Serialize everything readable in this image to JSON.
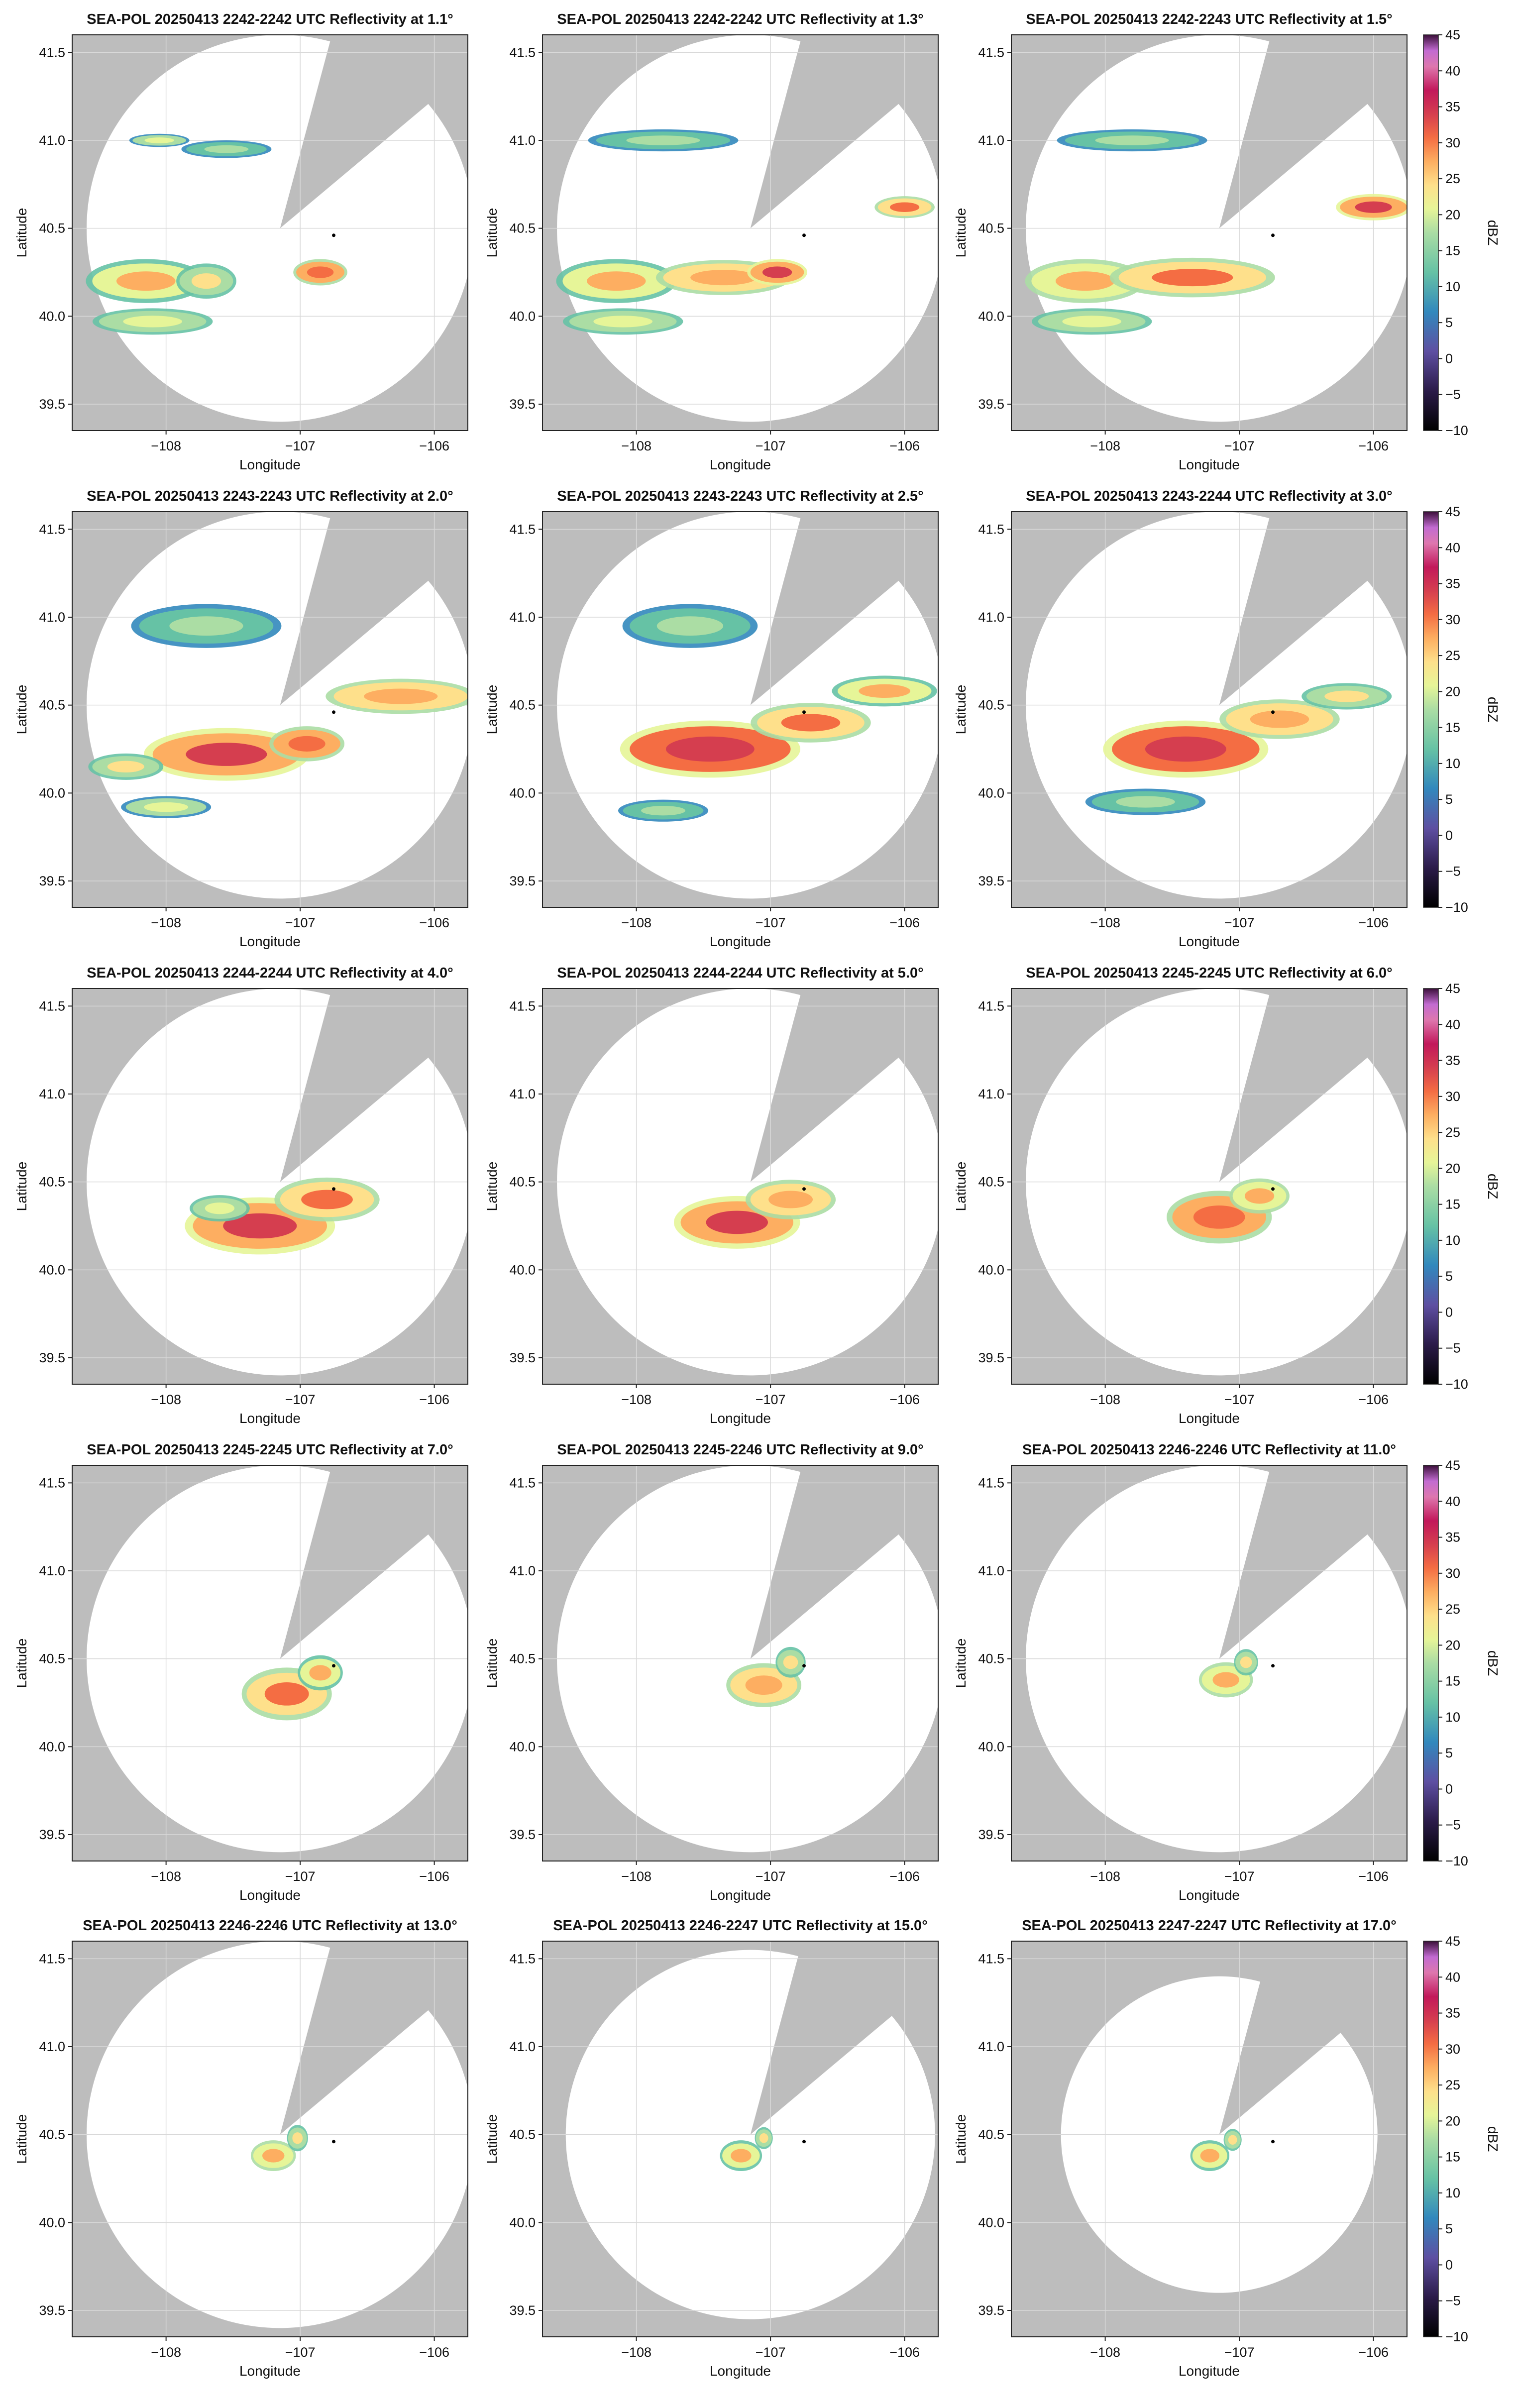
{
  "figure": {
    "colormap": "Spectral_r",
    "background_outside_range": "#bdbdbd",
    "colorbar": {
      "label": "dBZ",
      "ticks": [
        -10,
        -5,
        0,
        5,
        10,
        15,
        20,
        25,
        30,
        35,
        40,
        45
      ],
      "range": [
        -10,
        45
      ]
    },
    "radar_marker_color": "#000000"
  },
  "chart_data": [
    {
      "type": "heatmap",
      "title": "SEA-POL 20250413 2242-2242 UTC Reflectivity at 1.1°",
      "xlabel": "Longitude",
      "ylabel": "Latitude",
      "xticks": [
        "−108",
        "−107",
        "−106"
      ],
      "yticks": [
        "39.5",
        "40.0",
        "40.5",
        "41.0",
        "41.5"
      ],
      "xlim": [
        -108.7,
        -105.75
      ],
      "ylim": [
        39.35,
        41.6
      ],
      "sweep": {
        "center": [
          -107.15,
          40.5
        ],
        "radius_deg_lat": 1.1,
        "blocked_sector_az": [
          15,
          50
        ]
      },
      "radar_site": [
        -106.75,
        40.46
      ],
      "cells": [
        {
          "lon": -108.15,
          "lat": 40.2,
          "rlon": 0.4,
          "rlat": 0.1,
          "dbz": 22
        },
        {
          "lon": -107.7,
          "lat": 40.2,
          "rlon": 0.2,
          "rlat": 0.08,
          "dbz": 20
        },
        {
          "lon": -106.85,
          "lat": 40.25,
          "rlon": 0.18,
          "rlat": 0.06,
          "dbz": 27
        },
        {
          "lon": -108.1,
          "lat": 39.97,
          "rlon": 0.4,
          "rlat": 0.06,
          "dbz": 18
        },
        {
          "lon": -108.05,
          "lat": 41.0,
          "rlon": 0.2,
          "rlat": 0.03,
          "dbz": 16
        },
        {
          "lon": -107.55,
          "lat": 40.95,
          "rlon": 0.3,
          "rlat": 0.04,
          "dbz": 15
        }
      ]
    },
    {
      "type": "heatmap",
      "title": "SEA-POL 20250413 2242-2242 UTC Reflectivity at 1.3°",
      "xlabel": "Longitude",
      "ylabel": "Latitude",
      "xticks": [
        "−108",
        "−107",
        "−106"
      ],
      "yticks": [
        "39.5",
        "40.0",
        "40.5",
        "41.0",
        "41.5"
      ],
      "xlim": [
        -108.7,
        -105.75
      ],
      "ylim": [
        39.35,
        41.6
      ],
      "sweep": {
        "center": [
          -107.15,
          40.5
        ],
        "radius_deg_lat": 1.1,
        "blocked_sector_az": [
          15,
          50
        ]
      },
      "radar_site": [
        -106.75,
        40.46
      ],
      "cells": [
        {
          "lon": -108.15,
          "lat": 40.2,
          "rlon": 0.4,
          "rlat": 0.1,
          "dbz": 22
        },
        {
          "lon": -107.35,
          "lat": 40.22,
          "rlon": 0.45,
          "rlat": 0.08,
          "dbz": 24
        },
        {
          "lon": -106.95,
          "lat": 40.25,
          "rlon": 0.2,
          "rlat": 0.06,
          "dbz": 28
        },
        {
          "lon": -106.0,
          "lat": 40.62,
          "rlon": 0.2,
          "rlat": 0.05,
          "dbz": 26
        },
        {
          "lon": -108.1,
          "lat": 39.97,
          "rlon": 0.4,
          "rlat": 0.06,
          "dbz": 18
        },
        {
          "lon": -107.8,
          "lat": 41.0,
          "rlon": 0.5,
          "rlat": 0.05,
          "dbz": 15
        }
      ]
    },
    {
      "type": "heatmap",
      "title": "SEA-POL 20250413 2242-2243 UTC Reflectivity at 1.5°",
      "xlabel": "Longitude",
      "ylabel": "Latitude",
      "xticks": [
        "−108",
        "−107",
        "−106"
      ],
      "yticks": [
        "39.5",
        "40.0",
        "40.5",
        "41.0",
        "41.5"
      ],
      "xlim": [
        -108.7,
        -105.75
      ],
      "ylim": [
        39.35,
        41.6
      ],
      "sweep": {
        "center": [
          -107.15,
          40.5
        ],
        "radius_deg_lat": 1.1,
        "blocked_sector_az": [
          15,
          50
        ]
      },
      "radar_site": [
        -106.75,
        40.46
      ],
      "cells": [
        {
          "lon": -108.15,
          "lat": 40.2,
          "rlon": 0.4,
          "rlat": 0.1,
          "dbz": 23
        },
        {
          "lon": -107.35,
          "lat": 40.22,
          "rlon": 0.55,
          "rlat": 0.09,
          "dbz": 26
        },
        {
          "lon": -106.0,
          "lat": 40.62,
          "rlon": 0.25,
          "rlat": 0.06,
          "dbz": 28
        },
        {
          "lon": -108.1,
          "lat": 39.97,
          "rlon": 0.4,
          "rlat": 0.06,
          "dbz": 18
        },
        {
          "lon": -107.8,
          "lat": 41.0,
          "rlon": 0.5,
          "rlat": 0.05,
          "dbz": 15
        }
      ]
    },
    {
      "type": "heatmap",
      "title": "SEA-POL 20250413 2243-2243 UTC Reflectivity at 2.0°",
      "xlabel": "Longitude",
      "ylabel": "Latitude",
      "xticks": [
        "−108",
        "−107",
        "−106"
      ],
      "yticks": [
        "39.5",
        "40.0",
        "40.5",
        "41.0",
        "41.5"
      ],
      "xlim": [
        -108.7,
        -105.75
      ],
      "ylim": [
        39.35,
        41.6
      ],
      "sweep": {
        "center": [
          -107.15,
          40.5
        ],
        "radius_deg_lat": 1.1,
        "blocked_sector_az": [
          15,
          50
        ]
      },
      "radar_site": [
        -106.75,
        40.46
      ],
      "cells": [
        {
          "lon": -107.55,
          "lat": 40.22,
          "rlon": 0.55,
          "rlat": 0.12,
          "dbz": 29
        },
        {
          "lon": -106.95,
          "lat": 40.28,
          "rlon": 0.25,
          "rlat": 0.08,
          "dbz": 27
        },
        {
          "lon": -106.25,
          "lat": 40.55,
          "rlon": 0.5,
          "rlat": 0.08,
          "dbz": 24
        },
        {
          "lon": -108.3,
          "lat": 40.15,
          "rlon": 0.25,
          "rlat": 0.06,
          "dbz": 20
        },
        {
          "lon": -107.7,
          "lat": 40.95,
          "rlon": 0.5,
          "rlat": 0.1,
          "dbz": 15
        },
        {
          "lon": -108.0,
          "lat": 39.92,
          "rlon": 0.3,
          "rlat": 0.05,
          "dbz": 16
        }
      ]
    },
    {
      "type": "heatmap",
      "title": "SEA-POL 20250413 2243-2243 UTC Reflectivity at 2.5°",
      "xlabel": "Longitude",
      "ylabel": "Latitude",
      "xticks": [
        "−108",
        "−107",
        "−106"
      ],
      "yticks": [
        "39.5",
        "40.0",
        "40.5",
        "41.0",
        "41.5"
      ],
      "xlim": [
        -108.7,
        -105.75
      ],
      "ylim": [
        39.35,
        41.6
      ],
      "sweep": {
        "center": [
          -107.15,
          40.5
        ],
        "radius_deg_lat": 1.1,
        "blocked_sector_az": [
          15,
          50
        ]
      },
      "radar_site": [
        -106.75,
        40.46
      ],
      "cells": [
        {
          "lon": -107.45,
          "lat": 40.25,
          "rlon": 0.6,
          "rlat": 0.13,
          "dbz": 30
        },
        {
          "lon": -106.7,
          "lat": 40.4,
          "rlon": 0.4,
          "rlat": 0.09,
          "dbz": 25
        },
        {
          "lon": -106.15,
          "lat": 40.58,
          "rlon": 0.35,
          "rlat": 0.07,
          "dbz": 22
        },
        {
          "lon": -107.6,
          "lat": 40.95,
          "rlon": 0.45,
          "rlat": 0.1,
          "dbz": 14
        },
        {
          "lon": -107.8,
          "lat": 39.9,
          "rlon": 0.3,
          "rlat": 0.05,
          "dbz": 15
        }
      ]
    },
    {
      "type": "heatmap",
      "title": "SEA-POL 20250413 2243-2244 UTC Reflectivity at 3.0°",
      "xlabel": "Longitude",
      "ylabel": "Latitude",
      "xticks": [
        "−108",
        "−107",
        "−106"
      ],
      "yticks": [
        "39.5",
        "40.0",
        "40.5",
        "41.0",
        "41.5"
      ],
      "xlim": [
        -108.7,
        -105.75
      ],
      "ylim": [
        39.35,
        41.6
      ],
      "sweep": {
        "center": [
          -107.15,
          40.5
        ],
        "radius_deg_lat": 1.1,
        "blocked_sector_az": [
          15,
          50
        ]
      },
      "radar_site": [
        -106.75,
        40.46
      ],
      "cells": [
        {
          "lon": -107.4,
          "lat": 40.25,
          "rlon": 0.55,
          "rlat": 0.13,
          "dbz": 30
        },
        {
          "lon": -106.7,
          "lat": 40.42,
          "rlon": 0.4,
          "rlat": 0.09,
          "dbz": 24
        },
        {
          "lon": -106.2,
          "lat": 40.55,
          "rlon": 0.3,
          "rlat": 0.06,
          "dbz": 20
        },
        {
          "lon": -107.7,
          "lat": 39.95,
          "rlon": 0.4,
          "rlat": 0.06,
          "dbz": 15
        }
      ]
    },
    {
      "type": "heatmap",
      "title": "SEA-POL 20250413 2244-2244 UTC Reflectivity at 4.0°",
      "xlabel": "Longitude",
      "ylabel": "Latitude",
      "xticks": [
        "−108",
        "−107",
        "−106"
      ],
      "yticks": [
        "39.5",
        "40.0",
        "40.5",
        "41.0",
        "41.5"
      ],
      "xlim": [
        -108.7,
        -105.75
      ],
      "ylim": [
        39.35,
        41.6
      ],
      "sweep": {
        "center": [
          -107.15,
          40.5
        ],
        "radius_deg_lat": 1.1,
        "blocked_sector_az": [
          15,
          50
        ]
      },
      "radar_site": [
        -106.75,
        40.46
      ],
      "cells": [
        {
          "lon": -107.3,
          "lat": 40.25,
          "rlon": 0.5,
          "rlat": 0.13,
          "dbz": 28
        },
        {
          "lon": -106.8,
          "lat": 40.4,
          "rlon": 0.35,
          "rlat": 0.1,
          "dbz": 25
        },
        {
          "lon": -107.6,
          "lat": 40.35,
          "rlon": 0.2,
          "rlat": 0.06,
          "dbz": 18
        }
      ]
    },
    {
      "type": "heatmap",
      "title": "SEA-POL 20250413 2244-2244 UTC Reflectivity at 5.0°",
      "xlabel": "Longitude",
      "ylabel": "Latitude",
      "xticks": [
        "−108",
        "−107",
        "−106"
      ],
      "yticks": [
        "39.5",
        "40.0",
        "40.5",
        "41.0",
        "41.5"
      ],
      "xlim": [
        -108.7,
        -105.75
      ],
      "ylim": [
        39.35,
        41.6
      ],
      "sweep": {
        "center": [
          -107.15,
          40.5
        ],
        "radius_deg_lat": 1.1,
        "blocked_sector_az": [
          15,
          50
        ]
      },
      "radar_site": [
        -106.75,
        40.46
      ],
      "cells": [
        {
          "lon": -107.25,
          "lat": 40.27,
          "rlon": 0.42,
          "rlat": 0.12,
          "dbz": 28
        },
        {
          "lon": -106.85,
          "lat": 40.4,
          "rlon": 0.3,
          "rlat": 0.09,
          "dbz": 24
        }
      ]
    },
    {
      "type": "heatmap",
      "title": "SEA-POL 20250413 2245-2245 UTC Reflectivity at 6.0°",
      "xlabel": "Longitude",
      "ylabel": "Latitude",
      "xticks": [
        "−108",
        "−107",
        "−106"
      ],
      "yticks": [
        "39.5",
        "40.0",
        "40.5",
        "41.0",
        "41.5"
      ],
      "xlim": [
        -108.7,
        -105.75
      ],
      "ylim": [
        39.35,
        41.6
      ],
      "sweep": {
        "center": [
          -107.15,
          40.5
        ],
        "radius_deg_lat": 1.1,
        "blocked_sector_az": [
          15,
          50
        ]
      },
      "radar_site": [
        -106.75,
        40.46
      ],
      "cells": [
        {
          "lon": -107.15,
          "lat": 40.3,
          "rlon": 0.35,
          "rlat": 0.12,
          "dbz": 27
        },
        {
          "lon": -106.85,
          "lat": 40.42,
          "rlon": 0.2,
          "rlat": 0.08,
          "dbz": 23
        }
      ]
    },
    {
      "type": "heatmap",
      "title": "SEA-POL 20250413 2245-2245 UTC Reflectivity at 7.0°",
      "xlabel": "Longitude",
      "ylabel": "Latitude",
      "xticks": [
        "−108",
        "−107",
        "−106"
      ],
      "yticks": [
        "39.5",
        "40.0",
        "40.5",
        "41.0",
        "41.5"
      ],
      "xlim": [
        -108.7,
        -105.75
      ],
      "ylim": [
        39.35,
        41.6
      ],
      "sweep": {
        "center": [
          -107.15,
          40.5
        ],
        "radius_deg_lat": 1.1,
        "blocked_sector_az": [
          15,
          50
        ]
      },
      "radar_site": [
        -106.75,
        40.46
      ],
      "cells": [
        {
          "lon": -107.1,
          "lat": 40.3,
          "rlon": 0.3,
          "rlat": 0.12,
          "dbz": 26
        },
        {
          "lon": -106.85,
          "lat": 40.42,
          "rlon": 0.15,
          "rlat": 0.08,
          "dbz": 22
        }
      ]
    },
    {
      "type": "heatmap",
      "title": "SEA-POL 20250413 2245-2246 UTC Reflectivity at 9.0°",
      "xlabel": "Longitude",
      "ylabel": "Latitude",
      "xticks": [
        "−108",
        "−107",
        "−106"
      ],
      "yticks": [
        "39.5",
        "40.0",
        "40.5",
        "41.0",
        "41.5"
      ],
      "xlim": [
        -108.7,
        -105.75
      ],
      "ylim": [
        39.35,
        41.6
      ],
      "sweep": {
        "center": [
          -107.15,
          40.5
        ],
        "radius_deg_lat": 1.1,
        "blocked_sector_az": [
          15,
          50
        ]
      },
      "radar_site": [
        -106.75,
        40.46
      ],
      "cells": [
        {
          "lon": -107.05,
          "lat": 40.35,
          "rlon": 0.25,
          "rlat": 0.1,
          "dbz": 24
        },
        {
          "lon": -106.85,
          "lat": 40.48,
          "rlon": 0.1,
          "rlat": 0.07,
          "dbz": 20
        }
      ]
    },
    {
      "type": "heatmap",
      "title": "SEA-POL 20250413 2246-2246 UTC Reflectivity at 11.0°",
      "xlabel": "Longitude",
      "ylabel": "Latitude",
      "xticks": [
        "−108",
        "−107",
        "−106"
      ],
      "yticks": [
        "39.5",
        "40.0",
        "40.5",
        "41.0",
        "41.5"
      ],
      "xlim": [
        -108.7,
        -105.75
      ],
      "ylim": [
        39.35,
        41.6
      ],
      "sweep": {
        "center": [
          -107.15,
          40.5
        ],
        "radius_deg_lat": 1.1,
        "blocked_sector_az": [
          15,
          50
        ]
      },
      "radar_site": [
        -106.75,
        40.46
      ],
      "cells": [
        {
          "lon": -107.1,
          "lat": 40.38,
          "rlon": 0.18,
          "rlat": 0.08,
          "dbz": 23
        },
        {
          "lon": -106.95,
          "lat": 40.48,
          "rlon": 0.08,
          "rlat": 0.06,
          "dbz": 20
        }
      ]
    },
    {
      "type": "heatmap",
      "title": "SEA-POL 20250413 2246-2246 UTC Reflectivity at 13.0°",
      "xlabel": "Longitude",
      "ylabel": "Latitude",
      "xticks": [
        "−108",
        "−107",
        "−106"
      ],
      "yticks": [
        "39.5",
        "40.0",
        "40.5",
        "41.0",
        "41.5"
      ],
      "xlim": [
        -108.7,
        -105.75
      ],
      "ylim": [
        39.35,
        41.6
      ],
      "sweep": {
        "center": [
          -107.15,
          40.5
        ],
        "radius_deg_lat": 1.1,
        "blocked_sector_az": [
          15,
          50
        ]
      },
      "radar_site": [
        -106.75,
        40.46
      ],
      "cells": [
        {
          "lon": -107.2,
          "lat": 40.38,
          "rlon": 0.15,
          "rlat": 0.07,
          "dbz": 23
        },
        {
          "lon": -107.02,
          "lat": 40.48,
          "rlon": 0.07,
          "rlat": 0.06,
          "dbz": 20
        }
      ]
    },
    {
      "type": "heatmap",
      "title": "SEA-POL 20250413 2246-2247 UTC Reflectivity at 15.0°",
      "xlabel": "Longitude",
      "ylabel": "Latitude",
      "xticks": [
        "−108",
        "−107",
        "−106"
      ],
      "yticks": [
        "39.5",
        "40.0",
        "40.5",
        "41.0",
        "41.5"
      ],
      "xlim": [
        -108.7,
        -105.75
      ],
      "ylim": [
        39.35,
        41.6
      ],
      "sweep": {
        "center": [
          -107.15,
          40.5
        ],
        "radius_deg_lat": 1.05,
        "blocked_sector_az": [
          15,
          50
        ]
      },
      "radar_site": [
        -106.75,
        40.46
      ],
      "cells": [
        {
          "lon": -107.22,
          "lat": 40.38,
          "rlon": 0.14,
          "rlat": 0.07,
          "dbz": 22
        },
        {
          "lon": -107.05,
          "lat": 40.48,
          "rlon": 0.06,
          "rlat": 0.05,
          "dbz": 19
        }
      ]
    },
    {
      "type": "heatmap",
      "title": "SEA-POL 20250413 2247-2247 UTC Reflectivity at 17.0°",
      "xlabel": "Longitude",
      "ylabel": "Latitude",
      "xticks": [
        "−108",
        "−107",
        "−106"
      ],
      "yticks": [
        "39.5",
        "40.0",
        "40.5",
        "41.0",
        "41.5"
      ],
      "xlim": [
        -108.7,
        -105.75
      ],
      "ylim": [
        39.35,
        41.6
      ],
      "sweep": {
        "center": [
          -107.15,
          40.5
        ],
        "radius_deg_lat": 0.9,
        "blocked_sector_az": [
          15,
          50
        ]
      },
      "radar_site": [
        -106.75,
        40.46
      ],
      "cells": [
        {
          "lon": -107.22,
          "lat": 40.38,
          "rlon": 0.13,
          "rlat": 0.07,
          "dbz": 22
        },
        {
          "lon": -107.05,
          "lat": 40.47,
          "rlon": 0.06,
          "rlat": 0.05,
          "dbz": 19
        }
      ]
    }
  ]
}
